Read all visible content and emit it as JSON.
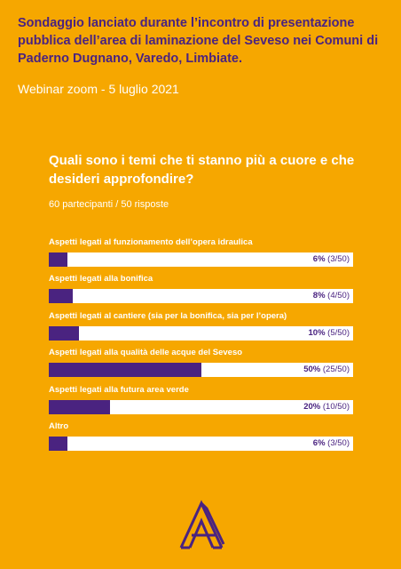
{
  "header": {
    "title": "Sondaggio lanciato durante l’incontro di presentazione pubblica dell’area di laminazione del Seveso nei Comuni di Paderno Dugnano, Varedo, Limbiate.",
    "subtitle": "Webinar zoom - 5 luglio 2021"
  },
  "survey": {
    "question": "Quali sono i temi che ti stanno più a cuore e che desideri approfondire?",
    "participants": "60 partecipanti / 50 risposte"
  },
  "colors": {
    "background": "#F6A700",
    "accent": "#4A2380",
    "track": "#FFFFFF"
  },
  "logo": {
    "icon": "a-logo-icon"
  },
  "chart_data": {
    "type": "bar",
    "orientation": "horizontal",
    "categories": [
      "Aspetti legati al funzionamento dell’opera idraulica",
      "Aspetti legati alla bonifica",
      "Aspetti legati al cantiere (sia per la bonifica, sia per l’opera)",
      "Aspetti legati alla qualità delle acque del Seveso",
      "Aspetti legati alla futura area verde",
      "Altro"
    ],
    "values": [
      6,
      8,
      10,
      50,
      20,
      6
    ],
    "percent_labels": [
      "6%",
      "8%",
      "10%",
      "50%",
      "20%",
      "6%"
    ],
    "count_labels": [
      "(3/50)",
      "(4/50)",
      "(5/50)",
      "(25/50)",
      "(10/50)",
      "(3/50)"
    ],
    "xlim": [
      0,
      100
    ]
  }
}
